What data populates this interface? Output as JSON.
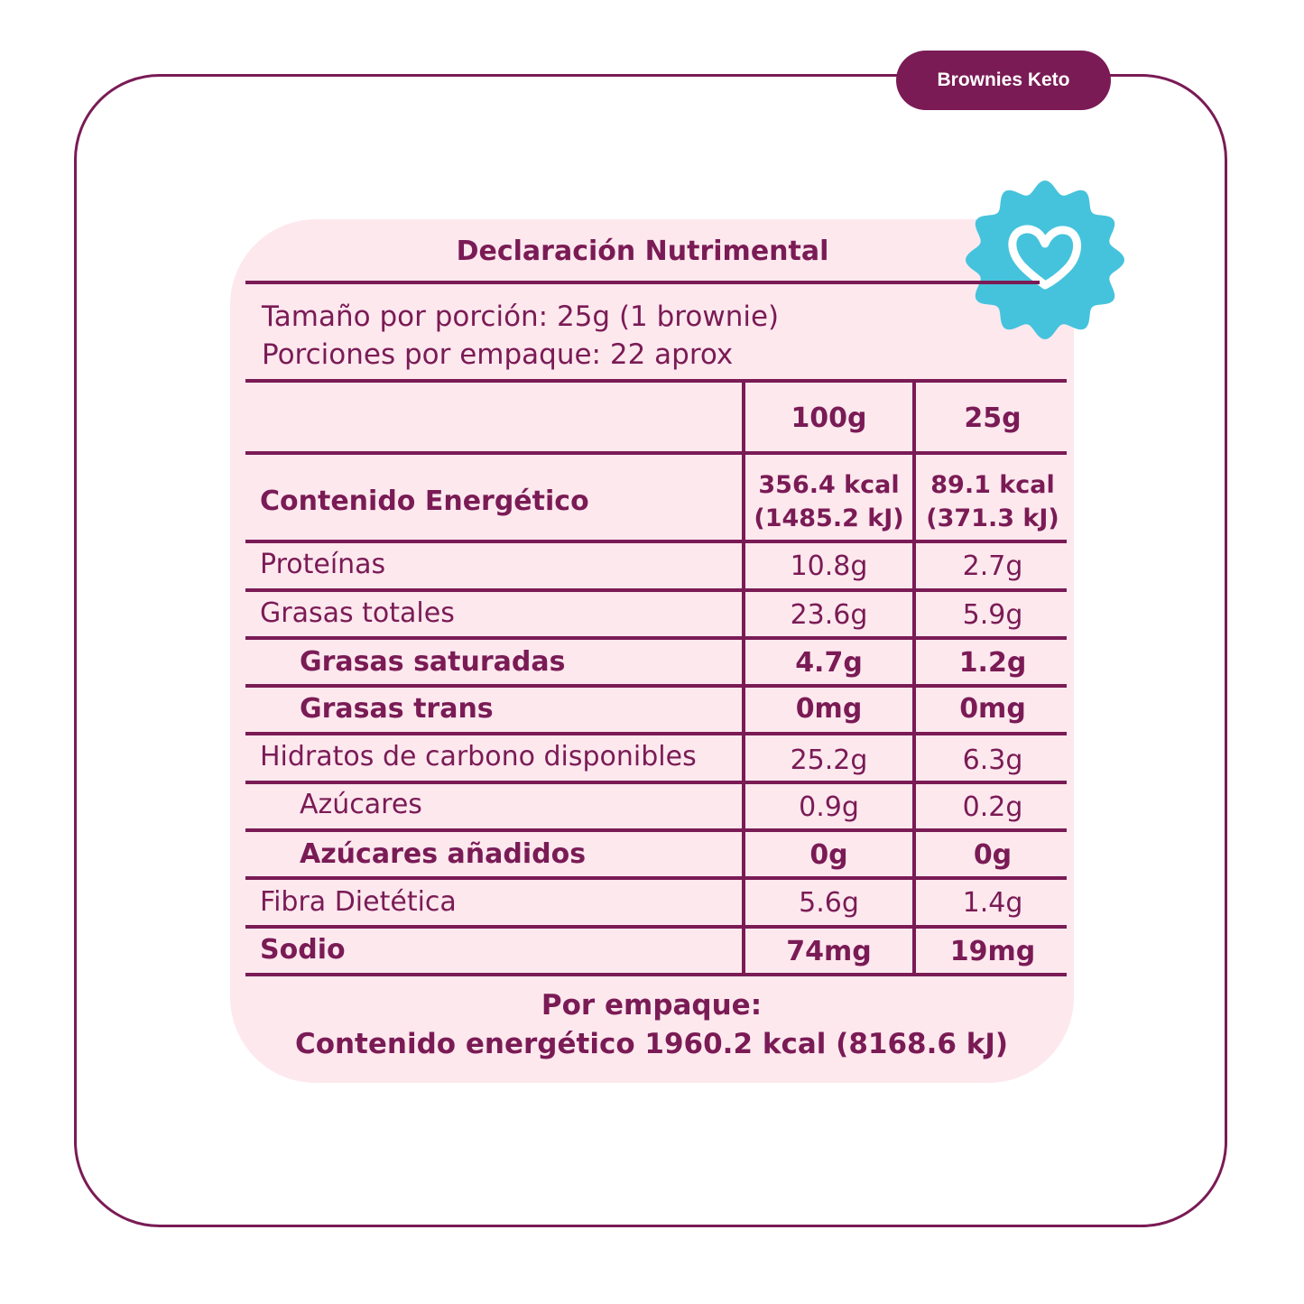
{
  "product_tag": "Brownies Keto",
  "title": "Declaración Nutrimental",
  "serving": {
    "size_line": "Tamaño por porción: 25g (1 brownie)",
    "servings_line": "Porciones por empaque: 22 aprox"
  },
  "table": {
    "headers": [
      "100g",
      "25g"
    ],
    "energy": {
      "label": "Contenido Energético",
      "col1_kcal": "356.4 kcal",
      "col1_kj": "(1485.2 kJ)",
      "col2_kcal": "89.1 kcal",
      "col2_kj": "(371.3 kJ)"
    },
    "rows": [
      {
        "label": "Proteínas",
        "v100": "10.8g",
        "v25": "2.7g"
      },
      {
        "label": "Grasas totales",
        "v100": "23.6g",
        "v25": "5.9g"
      },
      {
        "label": "Grasas saturadas",
        "v100": "4.7g",
        "v25": "1.2g"
      },
      {
        "label": "Grasas trans",
        "v100": "0mg",
        "v25": "0mg"
      },
      {
        "label": "Hidratos de carbono disponibles",
        "v100": "25.2g",
        "v25": "6.3g"
      },
      {
        "label": "Azúcares",
        "v100": "0.9g",
        "v25": "0.2g"
      },
      {
        "label": "Azúcares añadidos",
        "v100": "0g",
        "v25": "0g"
      },
      {
        "label": "Fibra Dietética",
        "v100": "5.6g",
        "v25": "1.4g"
      },
      {
        "label": "Sodio",
        "v100": "74mg",
        "v25": "19mg"
      }
    ]
  },
  "footer": {
    "line1": "Por empaque:",
    "line2": "Contenido energético 1960.2 kcal (8168.6 kJ)"
  },
  "colors": {
    "brand": "#7a1b55",
    "panel": "#fde8ee",
    "badge": "#45c3dc"
  },
  "icons": {
    "badge": "heart-badge-icon"
  }
}
